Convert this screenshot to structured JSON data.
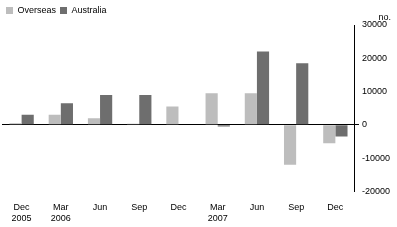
{
  "chart_data": {
    "type": "bar",
    "ylabel": "no.",
    "categories": [
      "Dec 2005",
      "Mar 2006",
      "Jun",
      "Sep",
      "Dec",
      "Mar 2007",
      "Jun",
      "Sep",
      "Dec"
    ],
    "series": [
      {
        "name": "Overseas",
        "color": "#bdbdbd",
        "values": [
          500,
          3000,
          2000,
          300,
          5500,
          9500,
          9500,
          -12000,
          -5500
        ]
      },
      {
        "name": "Australia",
        "color": "#6e6e6e",
        "values": [
          3000,
          6500,
          9000,
          9000,
          0,
          -500,
          22000,
          18500,
          -3500
        ]
      }
    ],
    "ylim": [
      -20000,
      30000
    ],
    "yticks": [
      -20000,
      -10000,
      0,
      10000,
      20000,
      30000
    ],
    "grid": false,
    "legend": "top-left"
  }
}
